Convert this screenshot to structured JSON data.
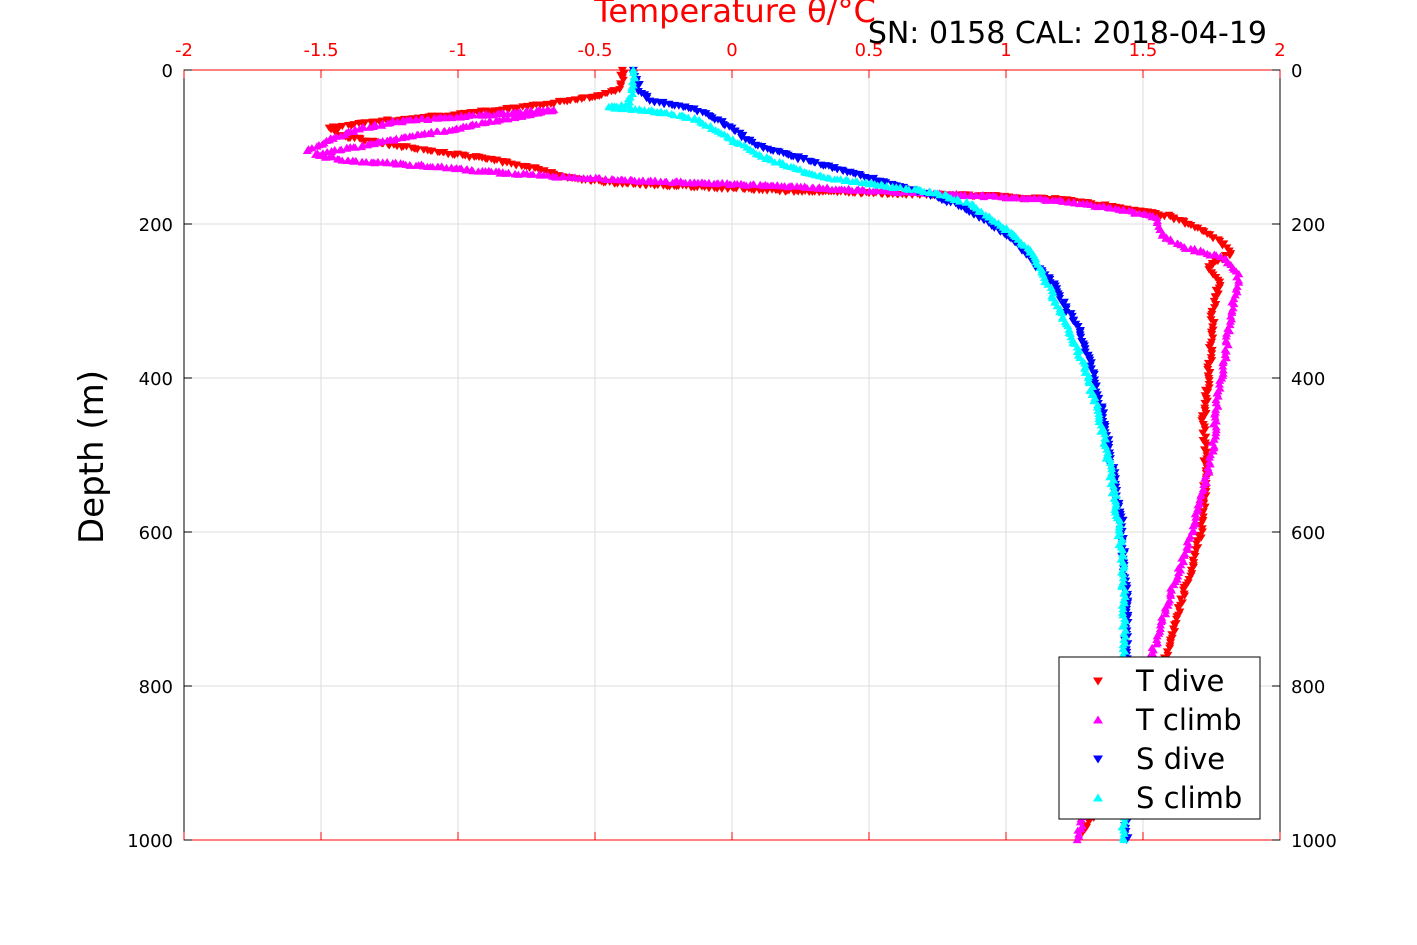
{
  "chart_data": {
    "type": "scatter",
    "title": "Temperature θ/°C",
    "subtitle": "SN: 0158  CAL: 2018-04-19",
    "xlabel": "Temperature θ/°C",
    "ylabel": "Depth (m)",
    "xlim": [
      -2,
      2
    ],
    "ylim": [
      0,
      1000
    ],
    "y_reversed": true,
    "grid": true,
    "x_ticks": [
      "-2",
      "-1.5",
      "-1",
      "-0.5",
      "0",
      "0.5",
      "1",
      "1.5",
      "2"
    ],
    "y_ticks": [
      "0",
      "200",
      "400",
      "600",
      "800",
      "1000"
    ],
    "legend_position": "bottom-right",
    "axis_color": "#ff0000",
    "series": [
      {
        "name": "T dive",
        "color": "#ff0000",
        "marker": "triangle-down",
        "points": [
          [
            -0.4,
            0
          ],
          [
            -0.4,
            10
          ],
          [
            -0.41,
            25
          ],
          [
            -0.5,
            35
          ],
          [
            -0.7,
            45
          ],
          [
            -1.0,
            58
          ],
          [
            -1.3,
            67
          ],
          [
            -1.47,
            75
          ],
          [
            -1.43,
            85
          ],
          [
            -1.28,
            95
          ],
          [
            -1.1,
            105
          ],
          [
            -0.9,
            115
          ],
          [
            -0.75,
            125
          ],
          [
            -0.6,
            140
          ],
          [
            -0.4,
            148
          ],
          [
            -0.1,
            152
          ],
          [
            0.2,
            157
          ],
          [
            0.5,
            160
          ],
          [
            0.9,
            163
          ],
          [
            1.2,
            168
          ],
          [
            1.4,
            178
          ],
          [
            1.6,
            190
          ],
          [
            1.7,
            205
          ],
          [
            1.78,
            222
          ],
          [
            1.82,
            238
          ],
          [
            1.74,
            255
          ],
          [
            1.78,
            275
          ],
          [
            1.76,
            300
          ],
          [
            1.75,
            340
          ],
          [
            1.74,
            400
          ],
          [
            1.72,
            460
          ],
          [
            1.73,
            520
          ],
          [
            1.72,
            580
          ],
          [
            1.7,
            620
          ],
          [
            1.65,
            680
          ],
          [
            1.6,
            740
          ],
          [
            1.56,
            800
          ],
          [
            1.5,
            850
          ],
          [
            1.42,
            900
          ],
          [
            1.35,
            950
          ],
          [
            1.28,
            990
          ]
        ]
      },
      {
        "name": "T climb",
        "color": "#ff00ff",
        "marker": "triangle-up",
        "points": [
          [
            -1.55,
            105
          ],
          [
            -1.48,
            92
          ],
          [
            -1.35,
            75
          ],
          [
            -1.22,
            67
          ],
          [
            -1.05,
            62
          ],
          [
            -0.85,
            57
          ],
          [
            -0.65,
            52
          ],
          [
            -1.52,
            110
          ],
          [
            -1.4,
            118
          ],
          [
            -1.2,
            122
          ],
          [
            -0.95,
            130
          ],
          [
            -0.7,
            137
          ],
          [
            -0.4,
            143
          ],
          [
            -0.1,
            147
          ],
          [
            0.15,
            150
          ],
          [
            0.4,
            155
          ],
          [
            0.7,
            160
          ],
          [
            1.0,
            165
          ],
          [
            1.2,
            170
          ],
          [
            1.4,
            180
          ],
          [
            1.55,
            192
          ],
          [
            1.57,
            215
          ],
          [
            1.65,
            230
          ],
          [
            1.8,
            245
          ],
          [
            1.85,
            265
          ],
          [
            1.84,
            285
          ],
          [
            1.82,
            320
          ],
          [
            1.8,
            370
          ],
          [
            1.77,
            420
          ],
          [
            1.76,
            480
          ],
          [
            1.74,
            520
          ],
          [
            1.7,
            570
          ],
          [
            1.66,
            620
          ],
          [
            1.6,
            680
          ],
          [
            1.55,
            740
          ],
          [
            1.48,
            800
          ],
          [
            1.4,
            860
          ],
          [
            1.34,
            920
          ],
          [
            1.28,
            970
          ],
          [
            1.26,
            1000
          ]
        ]
      },
      {
        "name": "S dive",
        "color": "#0000ff",
        "marker": "triangle-down",
        "points": [
          [
            -0.36,
            0
          ],
          [
            -0.35,
            15
          ],
          [
            -0.33,
            30
          ],
          [
            -0.3,
            40
          ],
          [
            -0.15,
            50
          ],
          [
            -0.08,
            60
          ],
          [
            0.0,
            75
          ],
          [
            0.05,
            90
          ],
          [
            0.15,
            105
          ],
          [
            0.3,
            120
          ],
          [
            0.45,
            135
          ],
          [
            0.6,
            150
          ],
          [
            0.75,
            165
          ],
          [
            0.85,
            180
          ],
          [
            0.92,
            195
          ],
          [
            0.98,
            210
          ],
          [
            1.05,
            230
          ],
          [
            1.1,
            250
          ],
          [
            1.18,
            280
          ],
          [
            1.22,
            310
          ],
          [
            1.27,
            340
          ],
          [
            1.3,
            370
          ],
          [
            1.33,
            410
          ],
          [
            1.36,
            460
          ],
          [
            1.39,
            520
          ],
          [
            1.42,
            580
          ],
          [
            1.43,
            640
          ],
          [
            1.44,
            700
          ],
          [
            1.44,
            760
          ],
          [
            1.44,
            820
          ],
          [
            1.44,
            880
          ],
          [
            1.44,
            940
          ],
          [
            1.44,
            1000
          ]
        ]
      },
      {
        "name": "S climb",
        "color": "#00ffff",
        "marker": "triangle-up",
        "points": [
          [
            -0.36,
            0
          ],
          [
            -0.36,
            20
          ],
          [
            -0.38,
            45
          ],
          [
            -0.45,
            48
          ],
          [
            -0.32,
            52
          ],
          [
            -0.22,
            57
          ],
          [
            -0.12,
            65
          ],
          [
            -0.05,
            80
          ],
          [
            0.02,
            95
          ],
          [
            0.1,
            110
          ],
          [
            0.2,
            125
          ],
          [
            0.35,
            140
          ],
          [
            0.55,
            150
          ],
          [
            0.75,
            160
          ],
          [
            0.88,
            175
          ],
          [
            0.95,
            195
          ],
          [
            1.03,
            215
          ],
          [
            1.1,
            240
          ],
          [
            1.14,
            270
          ],
          [
            1.18,
            300
          ],
          [
            1.22,
            330
          ],
          [
            1.26,
            360
          ],
          [
            1.3,
            400
          ],
          [
            1.34,
            450
          ],
          [
            1.37,
            500
          ],
          [
            1.4,
            560
          ],
          [
            1.42,
            620
          ],
          [
            1.43,
            680
          ],
          [
            1.43,
            740
          ],
          [
            1.43,
            800
          ],
          [
            1.43,
            860
          ],
          [
            1.43,
            920
          ],
          [
            1.43,
            980
          ],
          [
            1.43,
            1000
          ]
        ]
      }
    ]
  }
}
